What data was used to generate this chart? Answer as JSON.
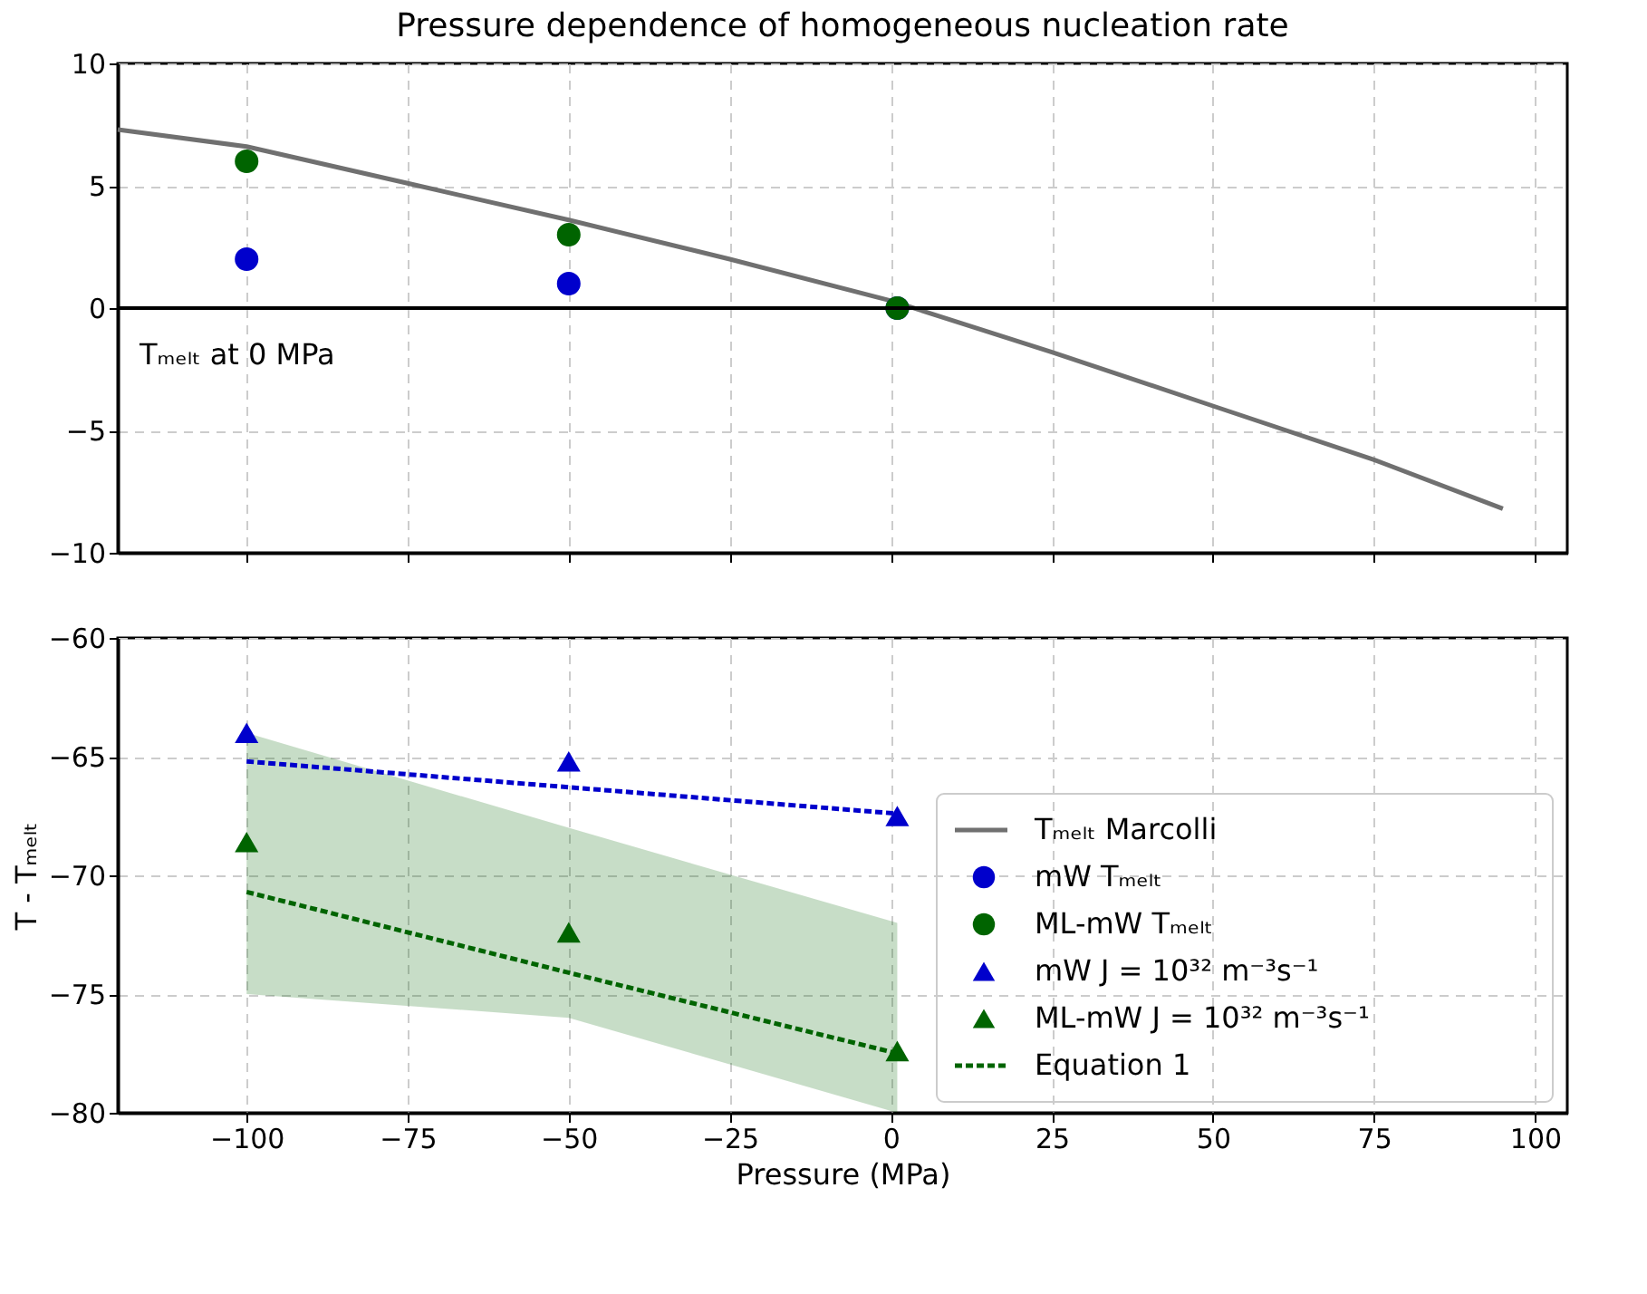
{
  "chart_data": [
    {
      "type": "line",
      "title": "Pressure dependence of homogeneous nucleation rate",
      "xlim": [
        -120,
        105
      ],
      "xticks": [
        -100,
        -75,
        -50,
        -25,
        0,
        25,
        50,
        75,
        100
      ],
      "ylim": [
        -10,
        10
      ],
      "yticks": [
        -10,
        -5,
        0,
        5,
        10
      ],
      "grid": true,
      "tick_labels": "y",
      "legend": "bottom right",
      "ref_lines": [
        {
          "axis": "y",
          "value": 0,
          "label": "Tₘₑₗₜ at 0 MPa",
          "color": "#000000"
        }
      ],
      "series": [
        {
          "name": "Tₘₑₗₜ Marcolli",
          "color": "#707070",
          "line_style": "solid",
          "x": [
            -120,
            -100,
            -75,
            -50,
            -25,
            0,
            25,
            50,
            75,
            95
          ],
          "values": [
            7.3,
            6.6,
            5.1,
            3.6,
            2.0,
            0.3,
            -1.8,
            -4.0,
            -6.2,
            -8.2
          ]
        },
        {
          "name": "mW Tₘₑₗₜ",
          "type": "scatter",
          "marker": "circle",
          "color": "#0000cc",
          "x": [
            -100,
            -50,
            1
          ],
          "values": [
            2,
            1,
            0
          ]
        },
        {
          "name": "ML-mW Tₘₑₗₜ",
          "type": "scatter",
          "marker": "circle",
          "color": "#006400",
          "x": [
            -100,
            -50,
            1
          ],
          "values": [
            6,
            3,
            0
          ]
        }
      ]
    },
    {
      "type": "line",
      "xlabel": "Pressure (MPa)",
      "ylabel": "T - Tₘₑₗₜ",
      "xlim": [
        -120,
        105
      ],
      "xticks": [
        -100,
        -75,
        -50,
        -25,
        0,
        25,
        50,
        75,
        100
      ],
      "ylim": [
        -80,
        -60
      ],
      "yticks": [
        -80,
        -75,
        -70,
        -65,
        -60
      ],
      "grid": true,
      "legend": "bottom right",
      "series": [
        {
          "color": "#0000cc",
          "line_style": "dashed",
          "x": [
            -100,
            1
          ],
          "values": [
            -65.2,
            -67.4
          ]
        },
        {
          "name": "mW J = 10³² m⁻³s⁻¹",
          "type": "scatter",
          "marker": "triangle",
          "color": "#0000cc",
          "x": [
            -100,
            -50,
            1
          ],
          "values": [
            -64.0,
            -65.2,
            -67.5
          ]
        },
        {
          "name": "ML-mW J = 10³² m⁻³s⁻¹",
          "type": "scatter",
          "marker": "triangle",
          "color": "#006400",
          "x": [
            -100,
            -50,
            1
          ],
          "values": [
            -68.6,
            -72.4,
            -77.4
          ]
        },
        {
          "name": "Equation 1",
          "color": "#006400",
          "line_style": "dashed",
          "x": [
            -100,
            -50,
            1
          ],
          "values": [
            -70.7,
            -74.1,
            -77.5
          ],
          "lower": [
            -75,
            -76,
            -80
          ],
          "upper": [
            -64,
            -68,
            -72
          ]
        }
      ]
    }
  ]
}
